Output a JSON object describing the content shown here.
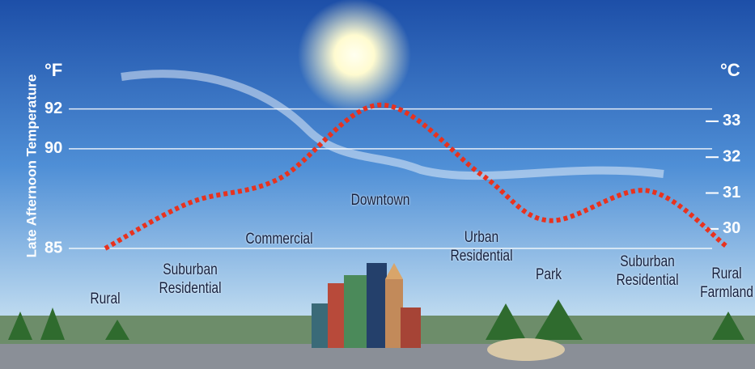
{
  "chart_data": {
    "type": "line",
    "y_axis_label": "Late Afternoon Temperature",
    "y_unit": "°F",
    "y2_unit": "°C",
    "categories": [
      "Rural",
      "Suburban Residential",
      "Commercial",
      "Downtown",
      "Urban Residential",
      "Park",
      "Suburban Residential",
      "Rural Farmland"
    ],
    "series": [
      {
        "name": "Late Afternoon Temperature",
        "color": "#e8321e",
        "values": [
          85,
          87.3,
          88.5,
          92.2,
          88.7,
          86.4,
          87.9,
          85.1
        ]
      }
    ],
    "ylim": [
      84,
      93
    ],
    "yticks": [
      85,
      90,
      92
    ],
    "y2lim": [
      28.9,
      33.9
    ],
    "y2ticks": [
      30,
      31,
      32,
      33
    ],
    "grid": true
  }
}
